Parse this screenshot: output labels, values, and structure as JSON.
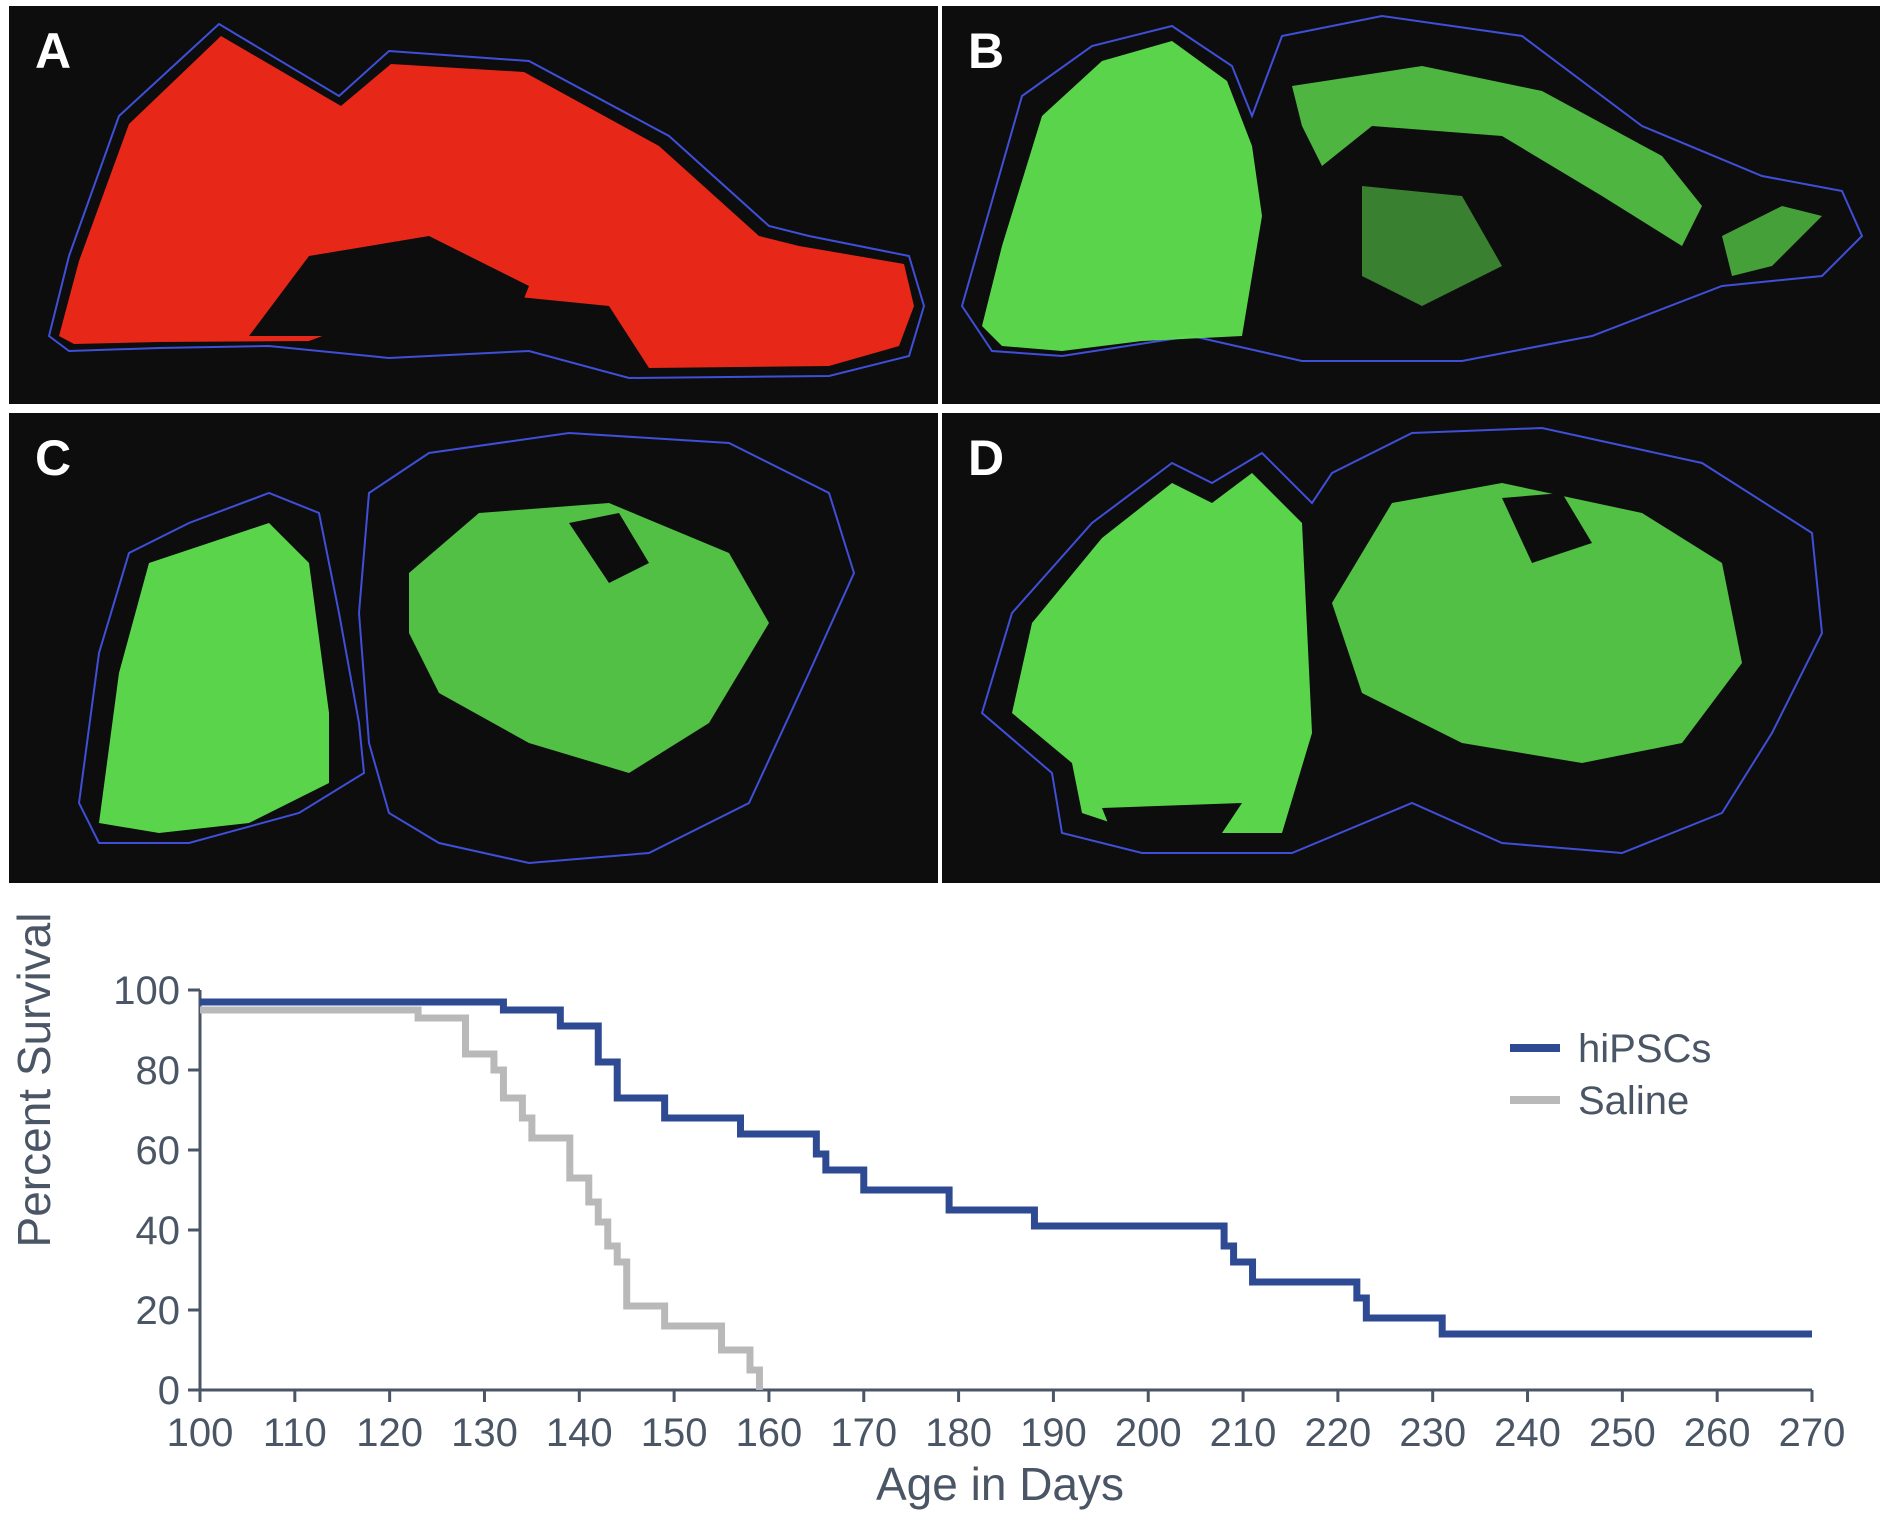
{
  "panels": [
    {
      "label": "A",
      "stain_color": "#ff2a1a"
    },
    {
      "label": "B",
      "stain_color": "#5fe04f"
    },
    {
      "label": "C",
      "stain_color": "#5fe04f"
    },
    {
      "label": "D",
      "stain_color": "#5fe04f"
    }
  ],
  "outline_color": "#3f4fd8",
  "chart_data": {
    "type": "line",
    "step": true,
    "xlabel": "Age in Days",
    "ylabel": "Percent Survival",
    "xlim": [
      100,
      270
    ],
    "ylim": [
      0,
      100
    ],
    "xticks": [
      100,
      110,
      120,
      130,
      140,
      150,
      160,
      170,
      180,
      190,
      200,
      210,
      220,
      230,
      240,
      250,
      260,
      270
    ],
    "yticks": [
      0,
      20,
      40,
      60,
      80,
      100
    ],
    "legend_position": "top-right",
    "grid": false,
    "series": [
      {
        "name": "hiPSCs",
        "color": "#2e4a93",
        "x": [
          100,
          132,
          138,
          142,
          144,
          149,
          157,
          165,
          166,
          170,
          179,
          188,
          208,
          209,
          211,
          214,
          222,
          223,
          224,
          231,
          270
        ],
        "y": [
          97,
          95,
          91,
          82,
          73,
          68,
          64,
          59,
          55,
          50,
          45,
          41,
          36,
          32,
          27,
          27,
          23,
          18,
          18,
          14,
          14
        ]
      },
      {
        "name": "Saline",
        "color": "#b9b9b9",
        "x": [
          100,
          123,
          128,
          131,
          132,
          134,
          135,
          139,
          141,
          142,
          143,
          144,
          145,
          149,
          155,
          158,
          159
        ],
        "y": [
          95,
          93,
          84,
          80,
          73,
          68,
          63,
          53,
          47,
          42,
          36,
          32,
          21,
          16,
          10,
          5,
          0
        ]
      }
    ]
  }
}
